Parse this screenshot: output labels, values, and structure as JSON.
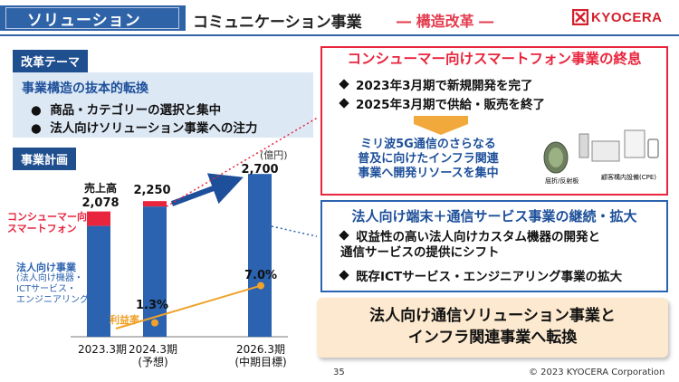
{
  "header": {
    "section_tag": "ソリューション",
    "title": "コミュニケーション事業",
    "subtitle": "― 構造改革 ―",
    "logo_text": "KYOCERA"
  },
  "left": {
    "theme_label": "改革テーマ",
    "theme_heading": "事業構造の抜本的転換",
    "theme_items": [
      "商品・カテゴリーの選択と集中",
      "法人向けソリューション事業への注力"
    ],
    "plan_label": "事業計画",
    "unit": "(億円)",
    "legend_consumer": "コンシューマー向け\nスマートフォン",
    "legend_corp_title": "法人向け事業",
    "legend_corp_detail": [
      "(法人向け機器・",
      "ICTサービス・",
      "エンジニアリング等)"
    ],
    "rate_label": "利益率"
  },
  "chart_data": {
    "type": "bar",
    "title": "事業計画",
    "ylabel": "売上高(億円)",
    "categories": [
      "2023.3期",
      "2024.3期 (予想)",
      "2026.3期 (中期目標)"
    ],
    "series": [
      {
        "name": "法人向け事業",
        "values": [
          null,
          null,
          2700
        ]
      },
      {
        "name": "コンシューマー向けスマートフォン",
        "values": [
          null,
          null,
          0
        ]
      }
    ],
    "totals": [
      2078,
      2250,
      2700
    ],
    "total_labels": [
      "2,078",
      "2,250",
      "2,700"
    ],
    "sales_label": "売上高",
    "profit_margin": {
      "name": "利益率",
      "values": [
        null,
        1.3,
        7.0
      ],
      "labels": [
        "",
        "1.3%",
        "7.0%"
      ]
    },
    "x_labels": [
      [
        "2023.3期"
      ],
      [
        "2024.3期",
        "(予想)"
      ],
      [
        "2026.3期",
        "(中期目標)"
      ]
    ]
  },
  "panel1": {
    "title": "コンシューマー向けスマートフォン事業の終息",
    "items": [
      "2023年3月期で新規開発を完了",
      "2025年3月期で供給・販売を終了"
    ],
    "note": "ミリ波5G通信のさらなる\n普及に向けたインフラ関連\n事業へ開発リソースを集中",
    "device_caption_left": "屈折/反射板",
    "device_caption_right": "顧客構内設備(CPE)"
  },
  "panel2": {
    "title": "法人向け端末＋通信サービス事業の継続・拡大",
    "items": [
      "収益性の高い法人向けカスタム機器の開発と\n通信サービスの提供にシフト",
      "既存ICTサービス・エンジニアリング事業の拡大"
    ]
  },
  "shift": {
    "text": "法人向け通信ソリューション事業と\nインフラ関連事業へ転換"
  },
  "footer": {
    "page": "35",
    "copyright": "© 2023 KYOCERA Corporation"
  },
  "colors": {
    "brand_blue": "#2f63a8",
    "accent_red": "#e8253d",
    "bar_blue": "#2b63b0",
    "margin_orange": "#f0a22a"
  }
}
